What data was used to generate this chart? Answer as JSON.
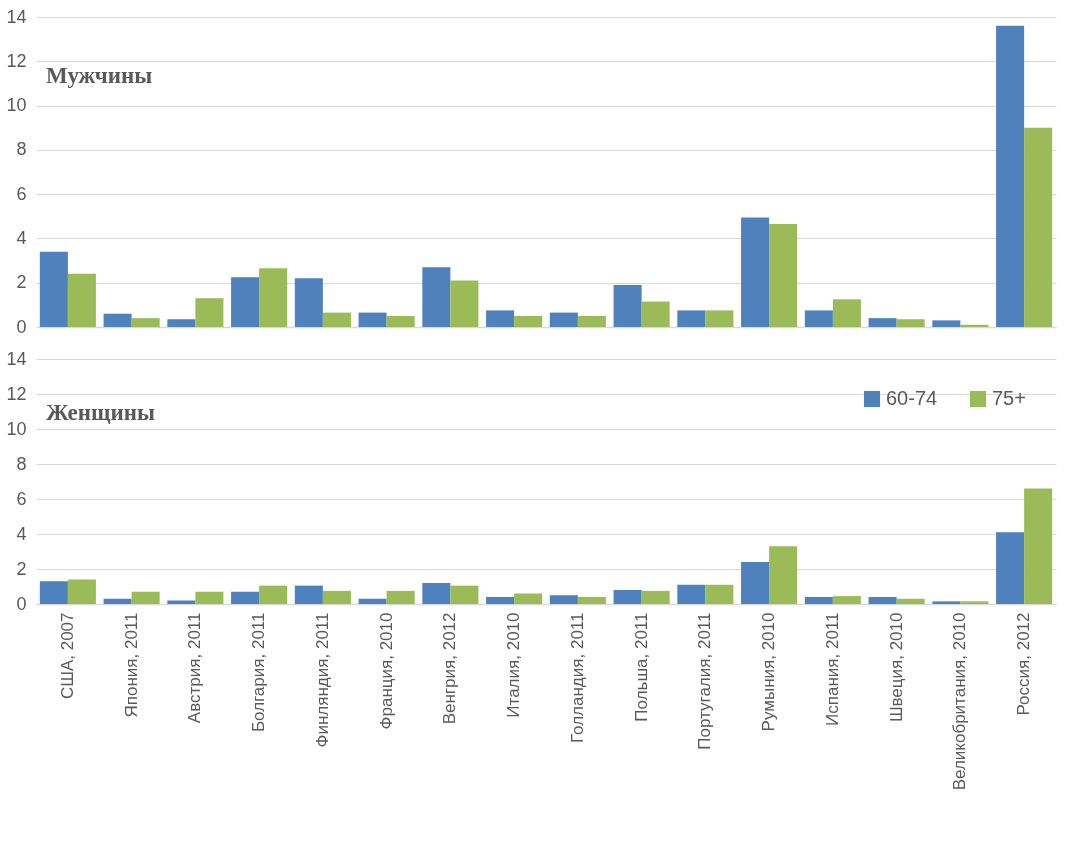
{
  "chart_data": [
    {
      "type": "bar",
      "title": "Мужчины",
      "categories": [
        null,
        null,
        null,
        null,
        null,
        null,
        null,
        null,
        null,
        null,
        null,
        null,
        null,
        null,
        null,
        null
      ],
      "series": [
        {
          "color": "#4f81bd",
          "values": [
            3.4,
            0.6,
            0.35,
            2.25,
            2.2,
            0.65,
            2.7,
            0.75,
            0.65,
            1.9,
            0.75,
            4.95,
            0.75,
            0.4,
            0.3,
            13.6
          ]
        },
        {
          "color": "#9bbb59",
          "values": [
            2.4,
            0.4,
            1.3,
            2.65,
            0.65,
            0.5,
            2.1,
            0.5,
            0.5,
            1.15,
            0.75,
            4.65,
            1.25,
            0.35,
            0.1,
            9.0
          ]
        }
      ],
      "ylim": [
        0,
        14
      ],
      "yticks": [
        0,
        2,
        4,
        6,
        8,
        10,
        12,
        14
      ],
      "grid": "y",
      "tick_labels": "y",
      "legend": false
    },
    {
      "type": "bar",
      "title": "Женщины",
      "categories": [
        "США, 2007",
        "Япония, 2011",
        "Австрия, 2011",
        "Болгария, 2011",
        "Финляндия, 2011",
        "Франция, 2010",
        "Венгрия, 2012",
        "Италия, 2010",
        "Голландия, 2011",
        "Польша, 2011",
        "Португалия, 2011",
        "Румыния, 2010",
        "Испания, 2011",
        "Швеция, 2010",
        "Великобритания, 2010",
        "Россия, 2012"
      ],
      "series": [
        {
          "name": "60-74",
          "color": "#4f81bd",
          "values": [
            1.3,
            0.3,
            0.2,
            0.7,
            1.05,
            0.3,
            1.2,
            0.4,
            0.5,
            0.8,
            1.1,
            2.4,
            0.4,
            0.4,
            0.15,
            4.1
          ]
        },
        {
          "name": "75+",
          "color": "#9bbb59",
          "values": [
            1.4,
            0.7,
            0.7,
            1.05,
            0.75,
            0.75,
            1.05,
            0.6,
            0.4,
            0.75,
            1.1,
            3.3,
            0.45,
            0.3,
            0.15,
            6.6
          ]
        }
      ],
      "ylim": [
        0,
        14
      ],
      "yticks": [
        0,
        2,
        4,
        6,
        8,
        10,
        12,
        14
      ],
      "grid": "y",
      "legend": "top right"
    }
  ]
}
